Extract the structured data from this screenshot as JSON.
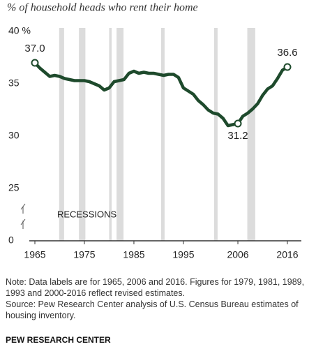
{
  "chart_data": {
    "type": "line",
    "title": "% of household heads who rent their home",
    "x": [
      1965,
      1966,
      1967,
      1968,
      1969,
      1970,
      1971,
      1972,
      1973,
      1974,
      1975,
      1976,
      1977,
      1978,
      1979,
      1980,
      1981,
      1982,
      1983,
      1984,
      1985,
      1986,
      1987,
      1988,
      1989,
      1990,
      1991,
      1992,
      1993,
      1994,
      1995,
      1996,
      1997,
      1998,
      1999,
      2000,
      2001,
      2002,
      2003,
      2004,
      2005,
      2006,
      2007,
      2008,
      2009,
      2010,
      2011,
      2012,
      2013,
      2014,
      2015,
      2016
    ],
    "series": [
      {
        "color": "#1e4a2c",
        "values": [
          37.0,
          36.5,
          36.1,
          35.7,
          35.8,
          35.7,
          35.5,
          35.4,
          35.3,
          35.3,
          35.3,
          35.2,
          35.0,
          34.8,
          34.4,
          34.6,
          35.2,
          35.3,
          35.4,
          36.0,
          36.2,
          36.0,
          36.1,
          36.0,
          36.0,
          35.9,
          35.8,
          35.9,
          35.9,
          35.6,
          34.6,
          34.3,
          34.0,
          33.4,
          33.0,
          32.5,
          32.2,
          32.1,
          31.7,
          31.0,
          31.1,
          31.2,
          31.9,
          32.2,
          32.6,
          33.1,
          33.9,
          34.5,
          34.8,
          35.5,
          36.3,
          36.6
        ],
        "value_labels": [
          "37.0",
          null,
          null,
          null,
          null,
          null,
          null,
          null,
          null,
          null,
          null,
          null,
          null,
          null,
          null,
          null,
          null,
          null,
          null,
          null,
          null,
          null,
          null,
          null,
          null,
          null,
          null,
          null,
          null,
          null,
          null,
          null,
          null,
          null,
          null,
          null,
          null,
          null,
          null,
          null,
          null,
          "31.2",
          null,
          null,
          null,
          null,
          null,
          null,
          null,
          null,
          null,
          "36.6"
        ]
      }
    ],
    "xlim": [
      1965,
      2016
    ],
    "xticks": [
      1965,
      1975,
      1985,
      1995,
      2006,
      2016
    ],
    "ylim": [
      0,
      40
    ],
    "axis_break": [
      0,
      20
    ],
    "yticks": [
      0,
      25,
      30,
      35,
      {
        "value": 40,
        "label": "40 %"
      }
    ],
    "recessions_label": "RECESSIONS",
    "recessions": [
      [
        1969.9,
        1970.9
      ],
      [
        1973.9,
        1975.2
      ],
      [
        1980.0,
        1980.5
      ],
      [
        1981.5,
        1982.9
      ],
      [
        1990.5,
        1991.2
      ],
      [
        2001.2,
        2001.9
      ],
      [
        2007.9,
        2009.5
      ]
    ],
    "recession_color": "#dcdcdc",
    "note": "Note: Data labels are for 1965, 2006 and 2016. Figures for 1979, 1981, 1989, 1993 and 2000-2016 reflect revised estimates.",
    "source": "Source: Pew Research Center analysis of U.S. Census Bureau estimates of housing inventory.",
    "credit": "PEW RESEARCH CENTER"
  }
}
